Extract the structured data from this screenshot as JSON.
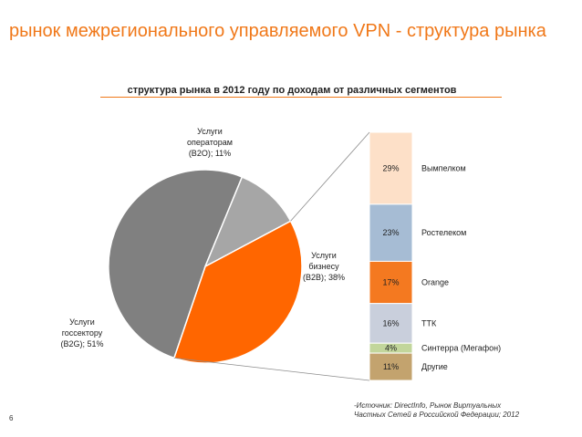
{
  "header": {
    "title": "рынок межрегионального управляемого VPN - структура рынка",
    "page_number": "6"
  },
  "source_note": "-Источник: DirectInfo, Рынок Виртуальных Частных Сетей в Российской Федерации; 2012",
  "colors": {
    "accent": "#f07819",
    "b2b": "#ff6600",
    "b2o": "#a6a6a6",
    "b2g": "#808080",
    "vympelcom": "#fde0c8",
    "rostelecom": "#a6bcd4",
    "orange": "#f47920",
    "ttk": "#c9cfdc",
    "sinterra": "#c2d69b",
    "others": "#c3a36e"
  },
  "chart_data": [
    {
      "type": "pie",
      "title": "структура рынка в 2012 году по доходам от различных сегментов",
      "slices": [
        {
          "label_lines": [
            "Услуги",
            "бизнесу",
            "(B2B); 38%"
          ],
          "value": 38,
          "color_key": "b2b"
        },
        {
          "label_lines": [
            "Услуги",
            "госсектору",
            "(B2G); 51%"
          ],
          "value": 51,
          "color_key": "b2g"
        },
        {
          "label_lines": [
            "Услуги",
            "операторам",
            "(B2O); 11%"
          ],
          "value": 11,
          "color_key": "b2o"
        }
      ]
    },
    {
      "type": "bar",
      "stacked": true,
      "segments": [
        {
          "name": "Вымпелком",
          "value": 29,
          "value_label": "29%",
          "color_key": "vympelcom"
        },
        {
          "name": "Ростелеком",
          "value": 23,
          "value_label": "23%",
          "color_key": "rostelecom"
        },
        {
          "name": "Orange",
          "value": 17,
          "value_label": "17%",
          "color_key": "orange"
        },
        {
          "name": "ТТК",
          "value": 16,
          "value_label": "16%",
          "color_key": "ttk"
        },
        {
          "name": "Синтерра (Мегафон)",
          "value": 4,
          "value_label": "4%",
          "color_key": "sinterra"
        },
        {
          "name": "Другие",
          "value": 11,
          "value_label": "11%",
          "color_key": "others"
        }
      ]
    }
  ]
}
